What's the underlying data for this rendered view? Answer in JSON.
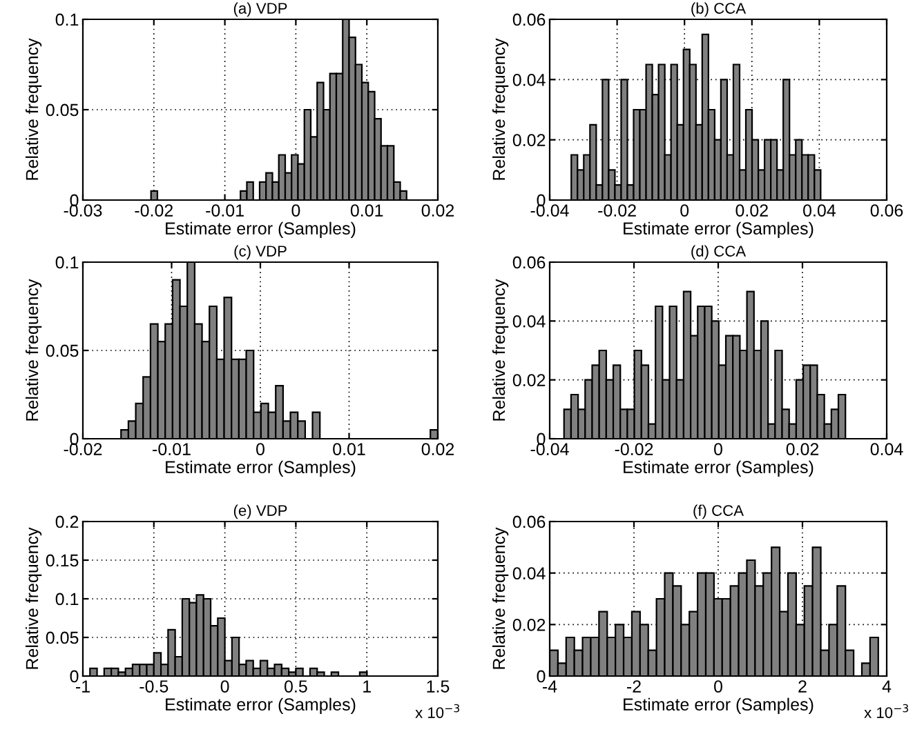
{
  "chart_data": [
    {
      "type": "histogram",
      "title": "(a) VDP",
      "xlabel": "Estimate error (Samples)",
      "ylabel": "Relative frequency",
      "color": "#808080",
      "grid": true,
      "xlim": [
        -0.03,
        0.02
      ],
      "xticks": [
        -0.03,
        -0.02,
        -0.01,
        0,
        0.01,
        0.02
      ],
      "ylim": [
        0,
        0.1
      ],
      "yticks": [
        0,
        0.05,
        0.1
      ],
      "bins": [
        -0.0204,
        -0.0195,
        -0.0186,
        -0.0177,
        -0.0168,
        -0.0159,
        -0.015,
        -0.0141,
        -0.0132,
        -0.0123,
        -0.0114,
        -0.0105,
        -0.0096,
        -0.0087,
        -0.0078,
        -0.0069,
        -0.006,
        -0.0051,
        -0.0042,
        -0.0033,
        -0.0024,
        -0.0015,
        -0.0006,
        0.0003,
        0.0012,
        0.0021,
        0.003,
        0.0039,
        0.0048,
        0.0057,
        0.0066,
        0.0075,
        0.0084,
        0.0093,
        0.0102,
        0.0111,
        0.012,
        0.0129,
        0.0138,
        0.0147,
        0.0156
      ],
      "values": [
        0.005,
        0,
        0,
        0,
        0,
        0,
        0,
        0,
        0,
        0,
        0,
        0,
        0,
        0,
        0.005,
        0.01,
        0,
        0.01,
        0.015,
        0.01,
        0.025,
        0.015,
        0.025,
        0.02,
        0.05,
        0.035,
        0.065,
        0.05,
        0.07,
        0.07,
        0.1,
        0.09,
        0.075,
        0.065,
        0.06,
        0.045,
        0.03,
        0.03,
        0.01,
        0.005
      ]
    },
    {
      "type": "histogram",
      "title": "(b) CCA",
      "xlabel": "Estimate error (Samples)",
      "ylabel": "Relative frequency",
      "color": "#808080",
      "grid": true,
      "xlim": [
        -0.04,
        0.06
      ],
      "xticks": [
        -0.04,
        -0.02,
        0,
        0.02,
        0.04,
        0.06
      ],
      "ylim": [
        0,
        0.06
      ],
      "yticks": [
        0,
        0.02,
        0.04,
        0.06
      ],
      "bins": [
        -0.0336,
        -0.03175,
        -0.0299,
        -0.02805,
        -0.0262,
        -0.02435,
        -0.0225,
        -0.02065,
        -0.0188,
        -0.01695,
        -0.0151,
        -0.01325,
        -0.0114,
        -0.00955,
        -0.0077,
        -0.00585,
        -0.004,
        -0.00215,
        -0.0003,
        0.00155,
        0.0034,
        0.00525,
        0.0071,
        0.00895,
        0.0108,
        0.01265,
        0.0145,
        0.01635,
        0.0182,
        0.02005,
        0.0219,
        0.02375,
        0.0256,
        0.02745,
        0.0293,
        0.03115,
        0.033,
        0.03485,
        0.0367,
        0.03855,
        0.0404
      ],
      "values": [
        0.015,
        0.01,
        0.015,
        0.025,
        0.005,
        0.04,
        0.01,
        0.005,
        0.04,
        0.005,
        0.03,
        0.03,
        0.045,
        0.035,
        0.045,
        0.015,
        0.045,
        0.025,
        0.05,
        0.045,
        0.025,
        0.055,
        0.03,
        0.02,
        0.04,
        0.015,
        0.045,
        0.01,
        0.03,
        0.02,
        0.01,
        0.02,
        0.02,
        0.01,
        0.04,
        0.015,
        0.02,
        0.015,
        0.015,
        0.01
      ]
    },
    {
      "type": "histogram",
      "title": "(c) VDP",
      "xlabel": "Estimate error (Samples)",
      "ylabel": "Relative frequency",
      "color": "#808080",
      "grid": true,
      "xlim": [
        -0.02,
        0.02
      ],
      "xticks": [
        -0.02,
        -0.01,
        0,
        0.01,
        0.02
      ],
      "ylim": [
        0,
        0.1
      ],
      "yticks": [
        0,
        0.05,
        0.1
      ],
      "bins": [
        -0.0157,
        -0.01487,
        -0.01404,
        -0.01321,
        -0.01238,
        -0.01155,
        -0.01072,
        -0.00989,
        -0.00906,
        -0.00823,
        -0.0074,
        -0.00657,
        -0.00574,
        -0.00491,
        -0.00408,
        -0.00325,
        -0.00242,
        -0.00159,
        -0.00076,
        7e-05,
        0.0009,
        0.00173,
        0.00256,
        0.00339,
        0.00422,
        0.00505,
        0.00588,
        0.00671,
        0.00754,
        0.00837,
        0.0092,
        0.01003,
        0.01086,
        0.01169,
        0.01252,
        0.01335,
        0.01418,
        0.01501,
        0.01584,
        0.01667,
        0.0175,
        0.01833,
        0.01916,
        0.01999
      ],
      "values": [
        0.005,
        0.01,
        0.02,
        0.035,
        0.065,
        0.055,
        0.065,
        0.09,
        0.075,
        0.1,
        0.065,
        0.055,
        0.075,
        0.045,
        0.08,
        0.045,
        0.045,
        0.05,
        0.015,
        0.02,
        0.015,
        0.03,
        0.01,
        0.015,
        0.01,
        0,
        0.015,
        0,
        0,
        0,
        0,
        0,
        0,
        0,
        0,
        0,
        0,
        0,
        0,
        0,
        0,
        0,
        0.005
      ]
    },
    {
      "type": "histogram",
      "title": "(d) CCA",
      "xlabel": "Estimate error (Samples)",
      "ylabel": "Relative frequency",
      "color": "#808080",
      "grid": true,
      "xlim": [
        -0.04,
        0.04
      ],
      "xticks": [
        -0.04,
        -0.02,
        0,
        0.02,
        0.04
      ],
      "ylim": [
        0,
        0.06
      ],
      "yticks": [
        0,
        0.02,
        0.04,
        0.06
      ],
      "bins": [
        -0.0366,
        -0.03493,
        -0.03326,
        -0.03159,
        -0.02992,
        -0.02825,
        -0.02658,
        -0.02491,
        -0.02324,
        -0.02157,
        -0.0199,
        -0.01823,
        -0.01656,
        -0.01489,
        -0.01322,
        -0.01155,
        -0.00988,
        -0.00821,
        -0.00654,
        -0.00487,
        -0.0032,
        -0.00153,
        0.00014,
        0.00181,
        0.00348,
        0.00515,
        0.00682,
        0.00849,
        0.01016,
        0.01183,
        0.0135,
        0.01517,
        0.01684,
        0.01851,
        0.02018,
        0.02185,
        0.02352,
        0.02519,
        0.02686,
        0.02853,
        0.0302
      ],
      "values": [
        0.01,
        0.015,
        0.01,
        0.02,
        0.025,
        0.03,
        0.02,
        0.025,
        0.01,
        0.01,
        0.03,
        0.025,
        0.005,
        0.045,
        0.02,
        0.045,
        0.02,
        0.05,
        0.035,
        0.045,
        0.045,
        0.04,
        0.025,
        0.035,
        0.035,
        0.03,
        0.05,
        0.03,
        0.04,
        0.005,
        0.03,
        0.01,
        0.005,
        0.02,
        0.025,
        0.025,
        0.015,
        0.005,
        0.01,
        0.015
      ]
    },
    {
      "type": "histogram",
      "title": "(e) VDP",
      "xlabel": "Estimate error (Samples)",
      "ylabel": "Relative frequency",
      "color": "#808080",
      "grid": true,
      "annotations": [
        "x 10$^{−3}$"
      ],
      "xlim": [
        -1,
        1.5
      ],
      "xticks": [
        -1,
        -0.5,
        0,
        0.5,
        1,
        1.5
      ],
      "ylim": [
        0,
        0.2
      ],
      "yticks": [
        0,
        0.05,
        0.1,
        0.15,
        0.2
      ],
      "bins": [
        -0.95,
        -0.9,
        -0.85,
        -0.8,
        -0.75,
        -0.7,
        -0.65,
        -0.6,
        -0.55,
        -0.5,
        -0.45,
        -0.4,
        -0.35,
        -0.3,
        -0.25,
        -0.2,
        -0.15,
        -0.1,
        -0.05,
        0,
        0.05,
        0.1,
        0.15,
        0.2,
        0.25,
        0.3,
        0.35,
        0.4,
        0.45,
        0.5,
        0.55,
        0.6,
        0.65,
        0.7,
        0.75,
        0.8,
        0.85,
        0.9,
        0.95,
        1.0
      ],
      "values": [
        0.01,
        0,
        0.01,
        0.01,
        0.005,
        0.01,
        0.015,
        0.015,
        0.015,
        0.03,
        0.015,
        0.06,
        0.025,
        0.1,
        0.095,
        0.105,
        0.1,
        0.065,
        0.075,
        0.02,
        0.05,
        0.015,
        0.02,
        0.01,
        0.02,
        0.01,
        0.015,
        0.01,
        0.005,
        0.01,
        0,
        0.01,
        0.005,
        0,
        0.005,
        0,
        0,
        0,
        0.005
      ]
    },
    {
      "type": "histogram",
      "title": "(f) CCA",
      "xlabel": "Estimate error (Samples)",
      "ylabel": "Relative frequency",
      "color": "#808080",
      "grid": true,
      "annotations": [
        "x 10$^{−3}$"
      ],
      "xlim": [
        -4,
        4
      ],
      "xticks": [
        -4,
        -2,
        0,
        2,
        4
      ],
      "ylim": [
        0,
        0.06
      ],
      "yticks": [
        0,
        0.02,
        0.04,
        0.06
      ],
      "bins": [
        -4,
        -3.805,
        -3.61,
        -3.415,
        -3.22,
        -3.025,
        -2.83,
        -2.635,
        -2.44,
        -2.245,
        -2.05,
        -1.855,
        -1.66,
        -1.465,
        -1.27,
        -1.075,
        -0.88,
        -0.685,
        -0.49,
        -0.295,
        -0.1,
        0.095,
        0.29,
        0.485,
        0.68,
        0.875,
        1.07,
        1.265,
        1.46,
        1.655,
        1.85,
        2.045,
        2.24,
        2.435,
        2.63,
        2.825,
        3.02,
        3.215,
        3.41,
        3.605,
        3.8
      ],
      "values": [
        0.01,
        0.005,
        0.015,
        0.01,
        0.015,
        0.015,
        0.025,
        0.015,
        0.02,
        0.015,
        0.025,
        0.02,
        0.01,
        0.03,
        0.04,
        0.035,
        0.02,
        0.025,
        0.04,
        0.04,
        0.03,
        0.03,
        0.035,
        0.04,
        0.045,
        0.035,
        0.04,
        0.05,
        0.025,
        0.04,
        0.02,
        0.035,
        0.05,
        0.01,
        0.02,
        0.035,
        0.01,
        0,
        0.005,
        0.015
      ]
    }
  ]
}
